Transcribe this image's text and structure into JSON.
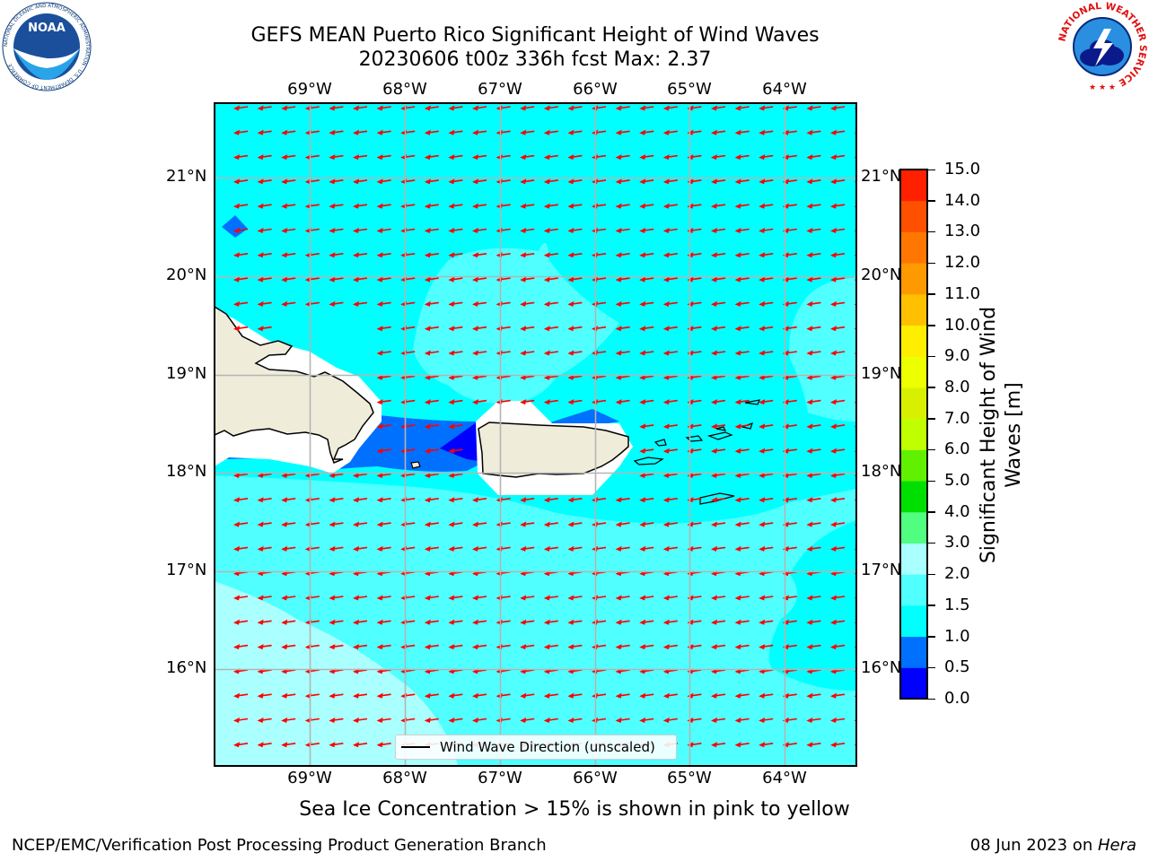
{
  "title": {
    "line1": "GEFS MEAN Puerto Rico Significant Height of Wind Waves",
    "line2": "20230606 t00z 336h fcst   Max: 2.37"
  },
  "map": {
    "lon_labels": [
      "69°W",
      "68°W",
      "67°W",
      "66°W",
      "65°W",
      "64°W"
    ],
    "lat_labels": [
      "21°N",
      "20°N",
      "19°N",
      "18°N",
      "17°N",
      "16°N"
    ],
    "land_color": "#efedda",
    "ocean_base_color": "#00ffff",
    "arrow_color": "#ff0000",
    "wave_direction": "westward"
  },
  "legend": {
    "label": "Wind Wave Direction (unscaled)"
  },
  "colorbar": {
    "label_line1": "Significant Height of Wind",
    "label_line2": "Waves [m]",
    "ticks": [
      "15.0",
      "14.0",
      "13.0",
      "12.0",
      "11.0",
      "10.0",
      "9.0",
      "8.0",
      "7.0",
      "6.0",
      "5.0",
      "4.0",
      "3.0",
      "2.0",
      "1.5",
      "1.0",
      "0.5",
      "0.0"
    ],
    "bands": [
      {
        "from": 0.0,
        "to": 0.5,
        "color": "#0000ff"
      },
      {
        "from": 0.5,
        "to": 1.0,
        "color": "#0070ff"
      },
      {
        "from": 1.0,
        "to": 1.5,
        "color": "#00ffff"
      },
      {
        "from": 1.5,
        "to": 2.0,
        "color": "#50ffff"
      },
      {
        "from": 2.0,
        "to": 3.0,
        "color": "#aaffff"
      },
      {
        "from": 3.0,
        "to": 4.0,
        "color": "#50ff80"
      },
      {
        "from": 4.0,
        "to": 5.0,
        "color": "#00e000"
      },
      {
        "from": 5.0,
        "to": 6.0,
        "color": "#60f000"
      },
      {
        "from": 6.0,
        "to": 7.0,
        "color": "#c0ff00"
      },
      {
        "from": 7.0,
        "to": 8.0,
        "color": "#d8f000"
      },
      {
        "from": 8.0,
        "to": 9.0,
        "color": "#eeff00"
      },
      {
        "from": 9.0,
        "to": 10.0,
        "color": "#ffee00"
      },
      {
        "from": 10.0,
        "to": 11.0,
        "color": "#ffc000"
      },
      {
        "from": 11.0,
        "to": 12.0,
        "color": "#ff9900"
      },
      {
        "from": 12.0,
        "to": 13.0,
        "color": "#ff7700"
      },
      {
        "from": 13.0,
        "to": 14.0,
        "color": "#ff5000"
      },
      {
        "from": 14.0,
        "to": 15.0,
        "color": "#ff2000"
      }
    ]
  },
  "subtitle": "Sea Ice Concentration > 15% is shown in pink to yellow",
  "footer": {
    "left": "NCEP/EMC/Verification Post Processing Product Generation Branch",
    "right_date": "08 Jun 2023 on ",
    "right_host": "Hera"
  },
  "logos": {
    "left": "noaa-logo",
    "right": "national-weather-service-logo",
    "left_text": "NOAA",
    "left_ring_text": "NATIONAL OCEANIC AND ATMOSPHERIC ADMINISTRATION · U.S. DEPARTMENT OF COMMERCE",
    "right_ring_text": "NATIONAL WEATHER SERVICE"
  }
}
